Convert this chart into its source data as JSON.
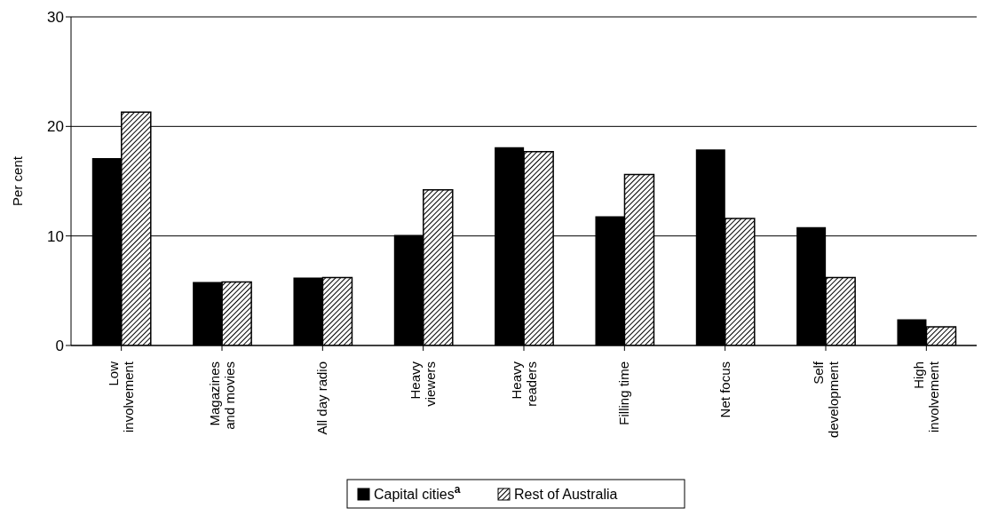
{
  "chart_data": {
    "type": "bar",
    "ylabel": "Per cent",
    "categories": [
      "Low\ninvolvement",
      "Magazines\nand movies",
      "All day radio",
      "Heavy\nviewers",
      "Heavy\nreaders",
      "Filling time",
      "Net focus",
      "Self\ndevelopment",
      "High\ninvolvement"
    ],
    "series": [
      {
        "name": "Capital cities$^{a}$",
        "color": "#000000",
        "values": [
          17.1,
          5.8,
          6.2,
          10.1,
          18.1,
          11.8,
          17.9,
          10.8,
          2.4
        ]
      },
      {
        "name": "Rest of Australia",
        "color": "#000000",
        "values": [
          21.3,
          5.8,
          6.2,
          14.2,
          17.7,
          15.6,
          11.6,
          6.2,
          1.7
        ]
      }
    ],
    "ylim": [
      0,
      30
    ],
    "yticks": [
      0,
      10,
      20,
      30
    ],
    "grid": "y",
    "legend": "bottom"
  }
}
